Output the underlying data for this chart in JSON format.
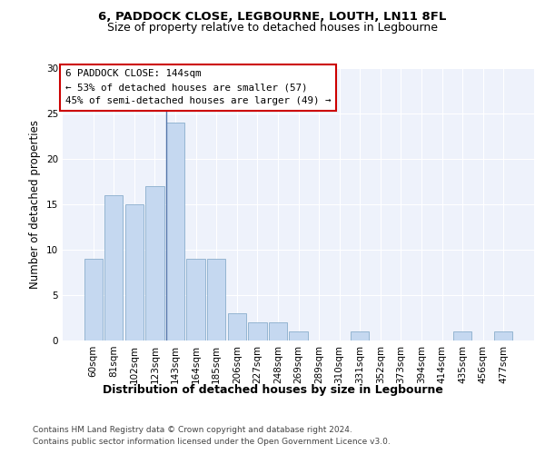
{
  "title1": "6, PADDOCK CLOSE, LEGBOURNE, LOUTH, LN11 8FL",
  "title2": "Size of property relative to detached houses in Legbourne",
  "xlabel": "Distribution of detached houses by size in Legbourne",
  "ylabel": "Number of detached properties",
  "categories": [
    "60sqm",
    "81sqm",
    "102sqm",
    "123sqm",
    "143sqm",
    "164sqm",
    "185sqm",
    "206sqm",
    "227sqm",
    "248sqm",
    "269sqm",
    "289sqm",
    "310sqm",
    "331sqm",
    "352sqm",
    "373sqm",
    "394sqm",
    "414sqm",
    "435sqm",
    "456sqm",
    "477sqm"
  ],
  "values": [
    9,
    16,
    15,
    17,
    24,
    9,
    9,
    3,
    2,
    2,
    1,
    0,
    0,
    1,
    0,
    0,
    0,
    0,
    1,
    0,
    1
  ],
  "bar_color": "#c5d8f0",
  "bar_edge_color": "#8aaecc",
  "vline_index": 4,
  "vline_color": "#5577aa",
  "ylim": [
    0,
    30
  ],
  "yticks": [
    0,
    5,
    10,
    15,
    20,
    25,
    30
  ],
  "annotation_line1": "6 PADDOCK CLOSE: 144sqm",
  "annotation_line2": "← 53% of detached houses are smaller (57)",
  "annotation_line3": "45% of semi-detached houses are larger (49) →",
  "annotation_box_edgecolor": "#cc0000",
  "footer1": "Contains HM Land Registry data © Crown copyright and database right 2024.",
  "footer2": "Contains public sector information licensed under the Open Government Licence v3.0.",
  "background_color": "#eef2fb",
  "grid_color": "#ffffff",
  "title1_fontsize": 9.5,
  "title2_fontsize": 9.0,
  "ylabel_fontsize": 8.5,
  "xlabel_fontsize": 9.0,
  "tick_fontsize": 7.5,
  "footer_fontsize": 6.5
}
